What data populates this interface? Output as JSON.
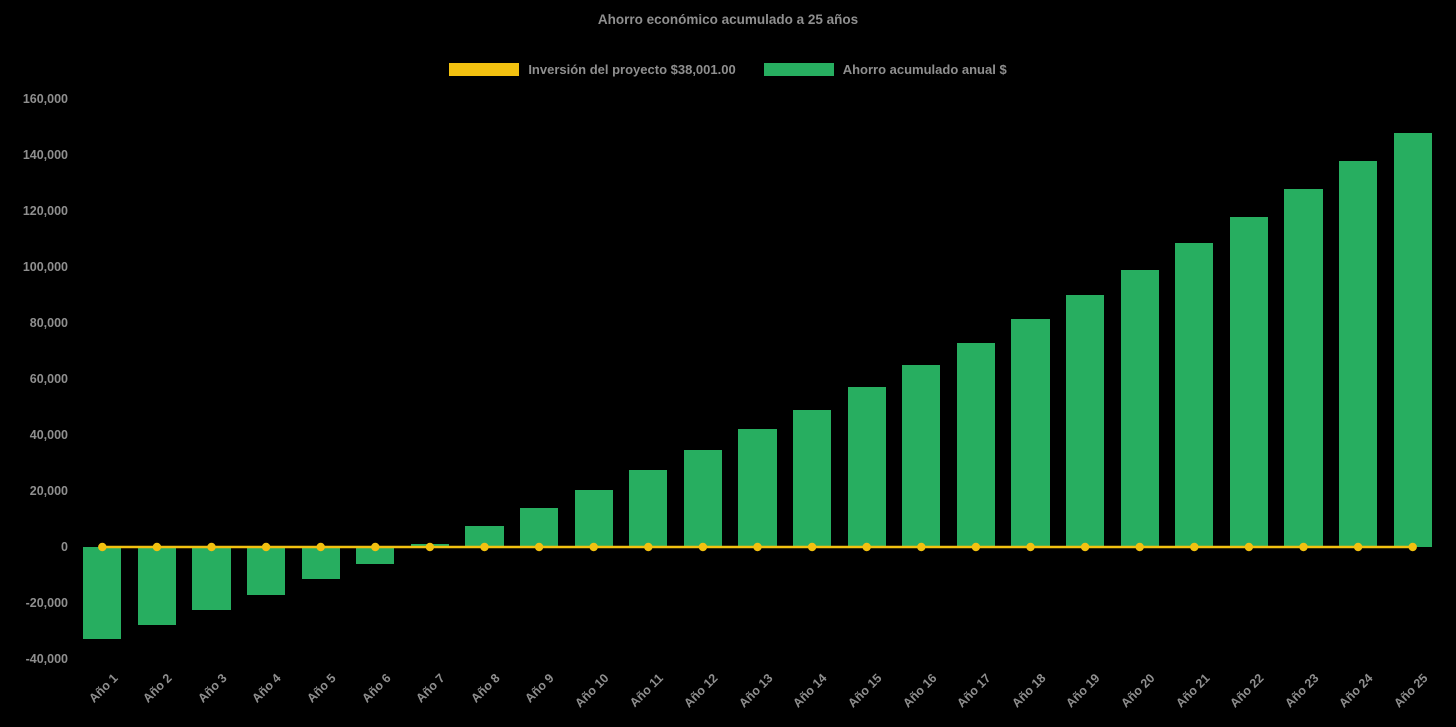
{
  "title": "Ahorro económico acumulado a 25 años",
  "legend": [
    {
      "label": "Inversión del proyecto $38,001.00",
      "color": "#F2C110",
      "type": "line"
    },
    {
      "label": "Ahorro acumulado anual $",
      "color": "#27AE60",
      "type": "bar"
    }
  ],
  "colors": {
    "background": "#000000",
    "text": "#8F8F8F",
    "bar": "#27AE60",
    "line": "#F2C110"
  },
  "chart_data": {
    "type": "bar",
    "title": "Ahorro económico acumulado a 25 años",
    "categories": [
      "Año 1",
      "Año 2",
      "Año 3",
      "Año 4",
      "Año 5",
      "Año 6",
      "Año 7",
      "Año 8",
      "Año 9",
      "Año 10",
      "Año 11",
      "Año 12",
      "Año 13",
      "Año 14",
      "Año 15",
      "Año 16",
      "Año 17",
      "Año 18",
      "Año 19",
      "Año 20",
      "Año 21",
      "Año 22",
      "Año 23",
      "Año 24",
      "Año 25"
    ],
    "series": [
      {
        "name": "Ahorro acumulado anual $",
        "type": "bar",
        "color": "#27AE60",
        "values": [
          -33000,
          -28000,
          -22500,
          -17000,
          -11500,
          -6000,
          1000,
          7500,
          14000,
          20500,
          27500,
          34500,
          42000,
          49000,
          57000,
          65000,
          73000,
          81500,
          90000,
          99000,
          108500,
          118000,
          128000,
          138000,
          148000
        ]
      },
      {
        "name": "Inversión del proyecto $38,001.00",
        "type": "line",
        "color": "#F2C110",
        "values": [
          0,
          0,
          0,
          0,
          0,
          0,
          0,
          0,
          0,
          0,
          0,
          0,
          0,
          0,
          0,
          0,
          0,
          0,
          0,
          0,
          0,
          0,
          0,
          0,
          0
        ]
      }
    ],
    "xlabel": "",
    "ylabel": "",
    "ylim": [
      -40000,
      160000
    ],
    "yticks": [
      -40000,
      -20000,
      0,
      20000,
      40000,
      60000,
      80000,
      100000,
      120000,
      140000,
      160000
    ],
    "grid": false,
    "legend_position": "top"
  }
}
